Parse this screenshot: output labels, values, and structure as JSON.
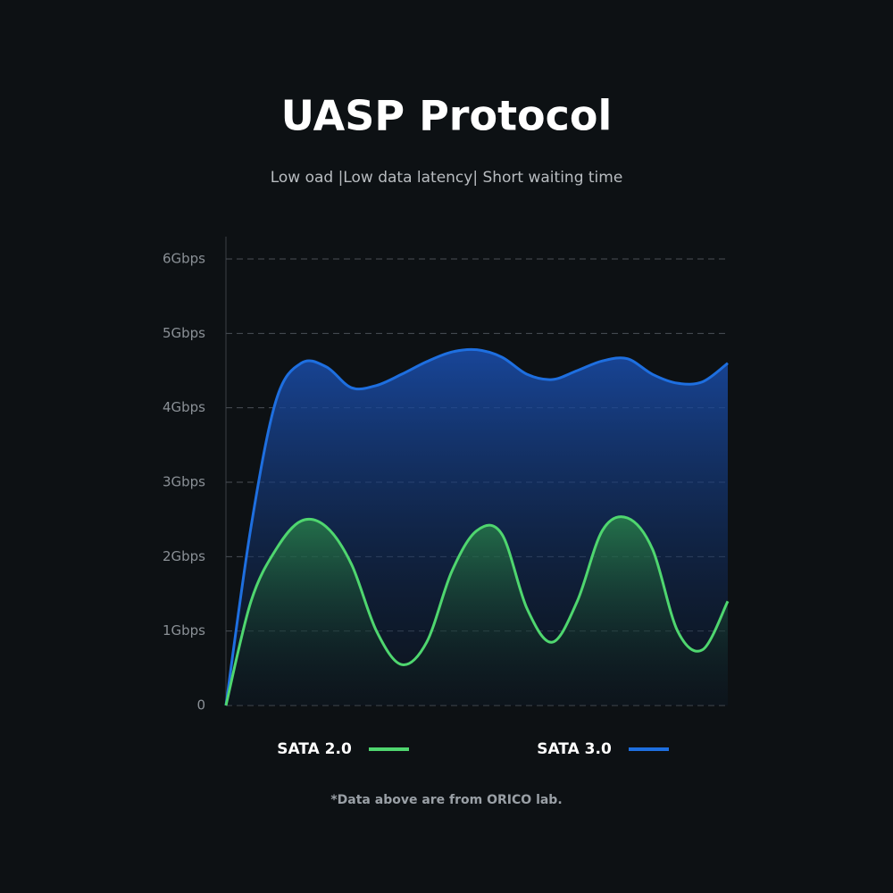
{
  "chart_data": {
    "type": "area",
    "title": "UASP Protocol",
    "subtitle": "Low oad |Low data latency| Short waiting time",
    "footnote": "*Data above are from ORICO lab.",
    "categories": [
      null,
      null,
      null,
      null,
      null,
      null,
      null,
      null,
      null,
      null,
      null,
      null,
      null,
      null,
      null,
      null,
      null,
      null,
      null,
      null,
      null
    ],
    "series": [
      {
        "name": "SATA 2.0",
        "color": "#4fd66f",
        "values": [
          0,
          1.4,
          2.1,
          2.48,
          2.4,
          1.9,
          1.0,
          0.55,
          0.85,
          1.8,
          2.35,
          2.3,
          1.3,
          0.85,
          1.4,
          2.35,
          2.52,
          2.1,
          1.0,
          0.75,
          1.4
        ]
      },
      {
        "name": "SATA 3.0",
        "color": "#1e6fe0",
        "values": [
          0,
          2.4,
          4.1,
          4.6,
          4.55,
          4.27,
          4.3,
          4.45,
          4.62,
          4.75,
          4.78,
          4.68,
          4.45,
          4.38,
          4.5,
          4.63,
          4.66,
          4.45,
          4.33,
          4.35,
          4.6
        ]
      }
    ],
    "ylim": [
      0,
      6
    ],
    "yticks": [
      0,
      {
        "value": 1,
        "label": "1Gbps"
      },
      {
        "value": 2,
        "label": "2Gbps"
      },
      {
        "value": 3,
        "label": "3Gbps"
      },
      {
        "value": 4,
        "label": "4Gbps"
      },
      {
        "value": 5,
        "label": "5Gbps"
      },
      {
        "value": 6,
        "label": "6Gbps"
      }
    ],
    "grid": true,
    "legend": "bottom"
  }
}
